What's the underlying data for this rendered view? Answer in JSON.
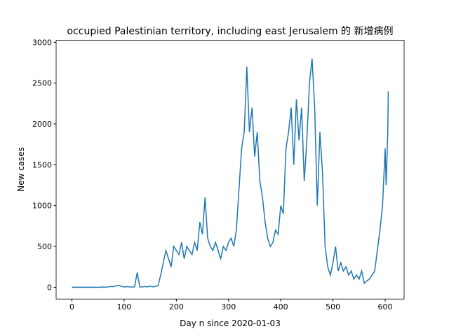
{
  "chart_data": {
    "type": "line",
    "title": "occupied Palestinian territory, including east Jerusalem 的 新增病例",
    "xlabel": "Day n since 2020-01-03",
    "ylabel": "New cases",
    "x": [
      0,
      5,
      10,
      15,
      20,
      25,
      30,
      35,
      40,
      45,
      50,
      55,
      60,
      65,
      70,
      75,
      80,
      85,
      90,
      95,
      100,
      105,
      110,
      115,
      120,
      125,
      130,
      135,
      140,
      145,
      150,
      155,
      160,
      165,
      170,
      175,
      180,
      185,
      190,
      195,
      200,
      205,
      210,
      215,
      220,
      225,
      230,
      235,
      240,
      245,
      250,
      255,
      260,
      265,
      270,
      275,
      280,
      285,
      290,
      295,
      300,
      305,
      310,
      315,
      320,
      325,
      330,
      335,
      340,
      345,
      350,
      355,
      360,
      365,
      370,
      375,
      380,
      385,
      390,
      395,
      400,
      405,
      410,
      415,
      420,
      425,
      430,
      435,
      440,
      445,
      450,
      455,
      460,
      465,
      470,
      475,
      480,
      485,
      490,
      495,
      500,
      505,
      510,
      515,
      520,
      525,
      530,
      535,
      540,
      545,
      550,
      555,
      560,
      565,
      570,
      575,
      580,
      585,
      590,
      595,
      600,
      602,
      605,
      606
    ],
    "series": [
      {
        "name": "New cases",
        "color": "#1f77b4",
        "values": [
          0,
          0,
          0,
          0,
          0,
          0,
          0,
          0,
          0,
          0,
          0,
          0,
          3,
          2,
          5,
          10,
          8,
          20,
          25,
          10,
          5,
          8,
          5,
          3,
          5,
          180,
          5,
          3,
          10,
          5,
          15,
          5,
          10,
          20,
          150,
          300,
          450,
          350,
          250,
          500,
          450,
          400,
          550,
          350,
          500,
          450,
          400,
          550,
          450,
          800,
          650,
          1100,
          600,
          500,
          450,
          550,
          450,
          350,
          500,
          450,
          550,
          600,
          500,
          700,
          1200,
          1700,
          1900,
          2700,
          1900,
          2200,
          1600,
          1900,
          1300,
          1100,
          800,
          600,
          500,
          550,
          700,
          650,
          1000,
          900,
          1700,
          1900,
          2200,
          1500,
          2300,
          1800,
          2200,
          1300,
          1800,
          2500,
          2800,
          2200,
          1000,
          1900,
          1400,
          500,
          250,
          150,
          300,
          500,
          200,
          300,
          200,
          250,
          150,
          200,
          100,
          150,
          100,
          200,
          50,
          80,
          100,
          150,
          200,
          450,
          700,
          1000,
          1700,
          1250,
          1900,
          2400
        ]
      }
    ],
    "xlim": [
      -30.3,
      636.3
    ],
    "ylim": [
      -144,
      3024
    ],
    "xticks": [
      0,
      100,
      200,
      300,
      400,
      500,
      600
    ],
    "yticks": [
      0,
      500,
      1000,
      1500,
      2000,
      2500,
      3000
    ]
  }
}
